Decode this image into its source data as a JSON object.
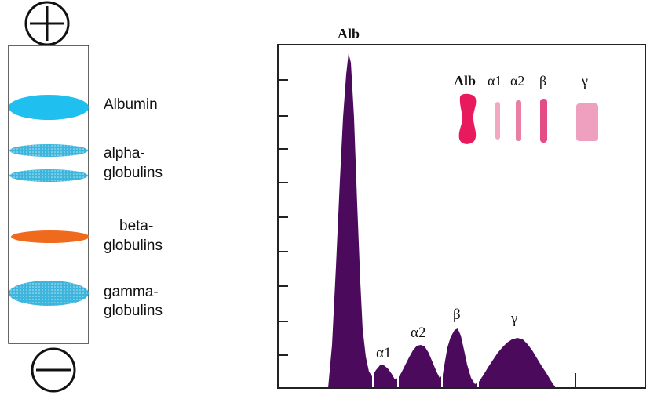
{
  "electrodes": {
    "positive_symbol": "+",
    "negative_symbol": "−"
  },
  "gel": {
    "bands": [
      {
        "line1": "Albumin",
        "line2": "",
        "color": "#1fbff0"
      },
      {
        "line1": "alpha-",
        "line2": "globulins",
        "color": "#3db6dd"
      },
      {
        "line1": "beta-",
        "line2": "globulins",
        "color": "#f06a1e"
      },
      {
        "line1": "gamma-",
        "line2": "globulins",
        "color": "#3db6dd"
      }
    ]
  },
  "densitometer": {
    "fill_color": "#4b0a5c",
    "peak_labels": {
      "alb": "Alb",
      "alpha1": "α1",
      "alpha2": "α2",
      "beta": "β",
      "gamma": "γ"
    },
    "strip": {
      "labels": [
        "Alb",
        "α1",
        "α2",
        "β",
        "γ"
      ],
      "band_color": "#e8195c"
    }
  }
}
